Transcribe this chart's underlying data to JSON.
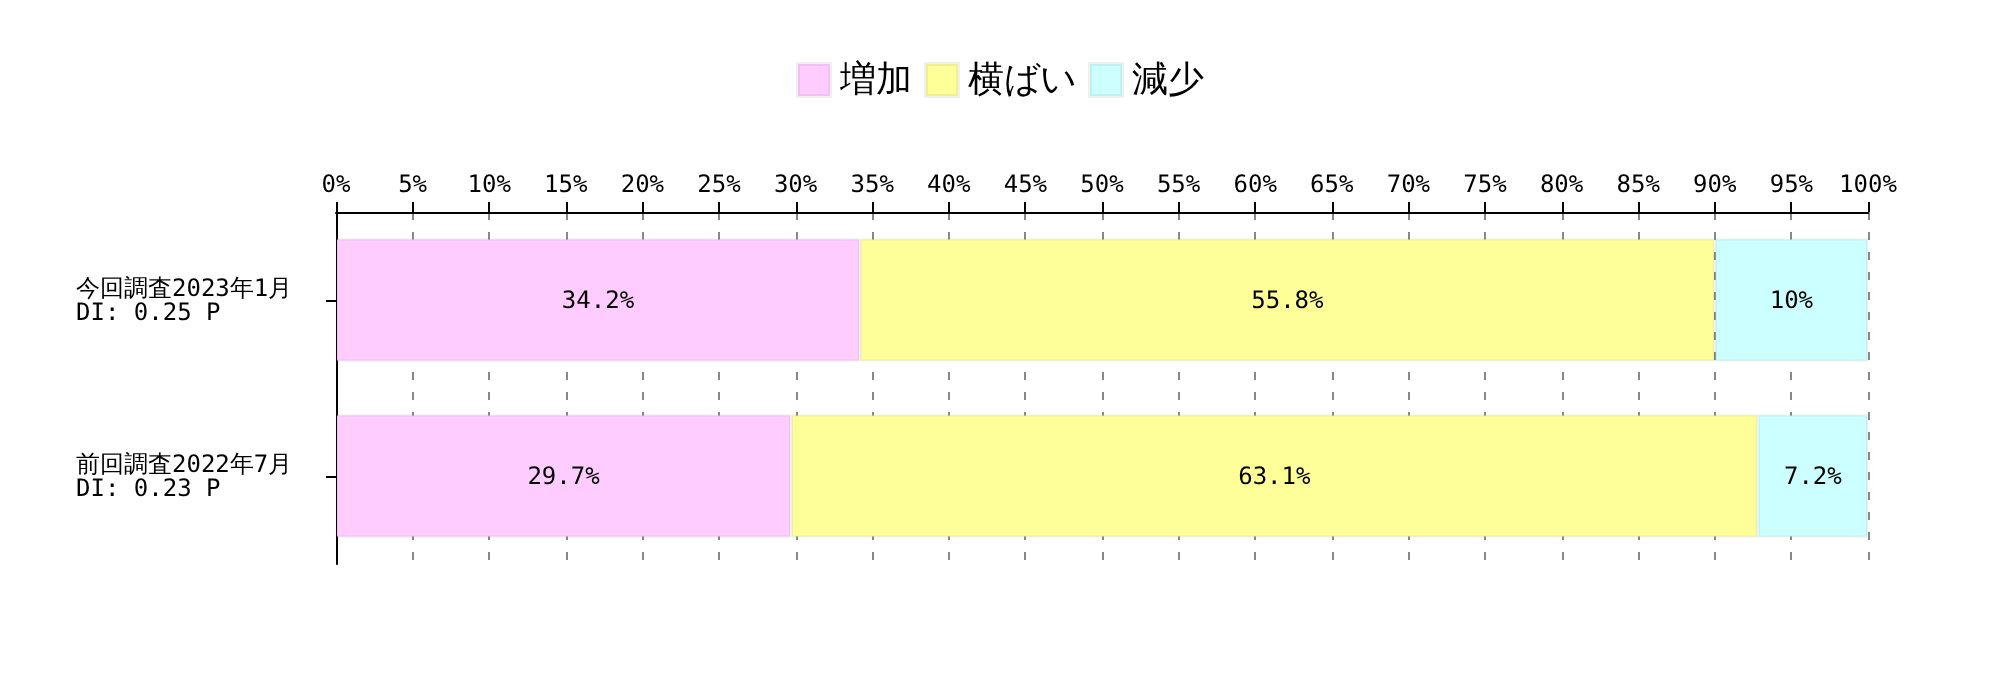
{
  "chart_data": {
    "type": "bar",
    "orientation": "horizontal",
    "stacked": true,
    "categories": [
      "今回調査2023年1月\nDI: 0.25 P",
      "前回調査2022年7月\nDI: 0.23 P"
    ],
    "series": [
      {
        "name": "増加",
        "color": "#ffccff",
        "values": [
          34.2,
          29.7
        ],
        "value_labels": [
          "34.2%",
          "29.7%"
        ]
      },
      {
        "name": "横ばい",
        "color": "#ffff99",
        "values": [
          55.8,
          63.1
        ],
        "value_labels": [
          "55.8%",
          "63.1%"
        ]
      },
      {
        "name": "減少",
        "color": "#ccffff",
        "values": [
          10,
          7.2
        ],
        "value_labels": [
          "10%",
          "7.2%"
        ]
      }
    ],
    "xlim": [
      0,
      100
    ],
    "xticks": [
      {
        "value": 0,
        "label": "0%"
      },
      {
        "value": 5,
        "label": "5%"
      },
      {
        "value": 10,
        "label": "10%"
      },
      {
        "value": 15,
        "label": "15%"
      },
      {
        "value": 20,
        "label": "20%"
      },
      {
        "value": 25,
        "label": "25%"
      },
      {
        "value": 30,
        "label": "30%"
      },
      {
        "value": 35,
        "label": "35%"
      },
      {
        "value": 40,
        "label": "40%"
      },
      {
        "value": 45,
        "label": "45%"
      },
      {
        "value": 50,
        "label": "50%"
      },
      {
        "value": 55,
        "label": "55%"
      },
      {
        "value": 60,
        "label": "60%"
      },
      {
        "value": 65,
        "label": "65%"
      },
      {
        "value": 70,
        "label": "70%"
      },
      {
        "value": 75,
        "label": "75%"
      },
      {
        "value": 80,
        "label": "80%"
      },
      {
        "value": 85,
        "label": "85%"
      },
      {
        "value": 90,
        "label": "90%"
      },
      {
        "value": 95,
        "label": "95%"
      },
      {
        "value": 100,
        "label": "100%"
      }
    ],
    "grid": "x",
    "legend": "top"
  }
}
